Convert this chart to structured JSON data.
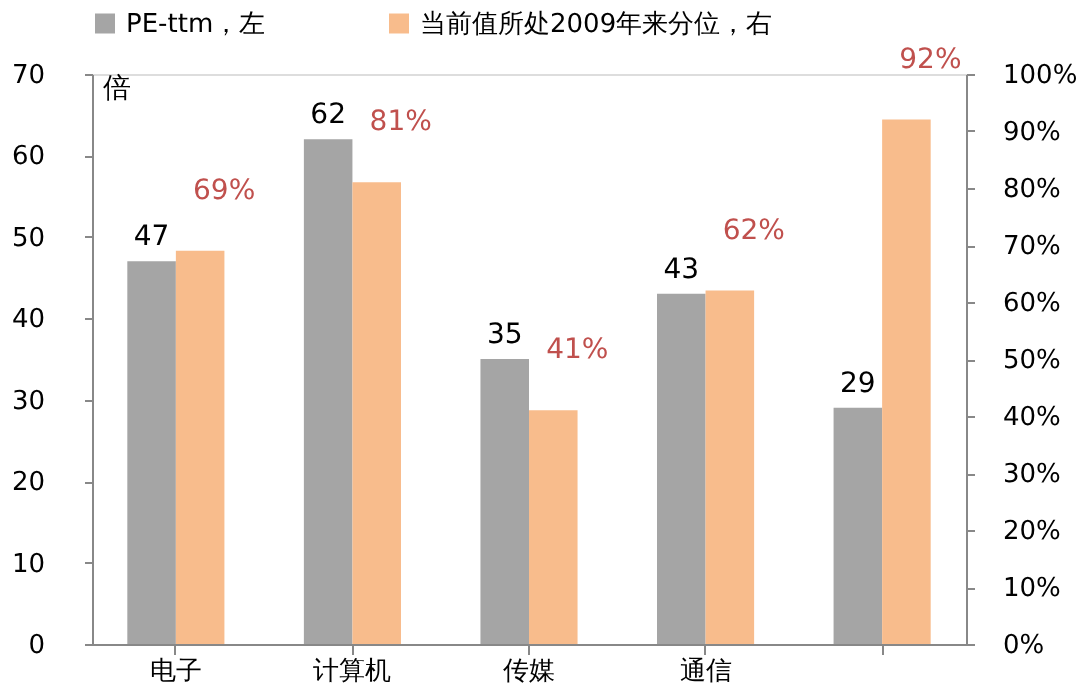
{
  "chart_data": {
    "type": "bar",
    "categories": [
      "电子",
      "计算机",
      "传媒",
      "通信",
      null
    ],
    "ylabel": "倍",
    "series": [
      {
        "name": "PE-ttm，左",
        "color": "#a5a5a5",
        "values": [
          47,
          62,
          35,
          43,
          29
        ],
        "value_labels": [
          "47",
          "62",
          "35",
          "43",
          "29"
        ]
      },
      {
        "name": "当前值所处2009年来分位，右",
        "color": "#f8bc8c",
        "axis": "y2",
        "values": [
          69,
          81,
          41,
          62,
          92
        ],
        "value_labels": [
          "69%",
          "81%",
          "41%",
          "62%",
          "92%"
        ]
      }
    ],
    "ylim": [
      0,
      70
    ],
    "yticks": [
      0,
      10,
      20,
      30,
      40,
      50,
      60,
      70
    ],
    "y2lim": [
      0,
      100
    ],
    "y2ticks": [
      {
        "value": 0,
        "label": "0%"
      },
      {
        "value": 10,
        "label": "10%"
      },
      {
        "value": 20,
        "label": "20%"
      },
      {
        "value": 30,
        "label": "30%"
      },
      {
        "value": 40,
        "label": "40%"
      },
      {
        "value": 50,
        "label": "50%"
      },
      {
        "value": 60,
        "label": "60%"
      },
      {
        "value": 70,
        "label": "70%"
      },
      {
        "value": 80,
        "label": "80%"
      },
      {
        "value": 90,
        "label": "90%"
      },
      {
        "value": 100,
        "label": "100%"
      }
    ],
    "grid": false,
    "legend": "top"
  }
}
